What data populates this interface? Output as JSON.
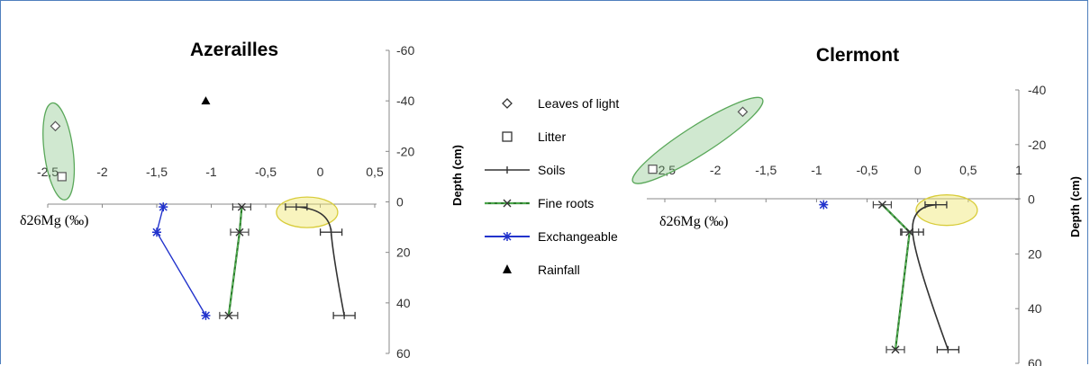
{
  "legend": [
    {
      "label": "Leaves of light",
      "marker": "diamond-open",
      "color": "#333333"
    },
    {
      "label": "Litter",
      "marker": "square-open",
      "color": "#333333"
    },
    {
      "label": "Soils",
      "marker": "line-bar",
      "color": "#333333"
    },
    {
      "label": "Fine roots",
      "marker": "x-dashed",
      "color": "#2a7a2a"
    },
    {
      "label": "Exchangeable",
      "marker": "star-line",
      "color": "#2233cc"
    },
    {
      "label": "Rainfall",
      "marker": "triangle",
      "color": "#000000"
    }
  ],
  "colors": {
    "soils": "#333333",
    "fine_roots": "#2a7a2a",
    "fine_roots_dash": "#5fbf5f",
    "exchangeable": "#2233cc",
    "green_ellipse": "#5aa85a",
    "yellow_ellipse": "#d8cc3a",
    "frame": "#4f7fbd"
  },
  "chart_data": [
    {
      "type": "scatter",
      "title": "Azerailles",
      "xlabel": "δ26Mg (‰)",
      "ylabel": "Depth (cm)",
      "xlim": [
        -2.5,
        0.5
      ],
      "ylim": [
        -60,
        60
      ],
      "y_inverted": true,
      "x_ticks": [
        "-2,5",
        "-2",
        "-1,5",
        "-1",
        "-0,5",
        "0",
        "0,5"
      ],
      "y_ticks": [
        "-60",
        "-40",
        "-20",
        "0",
        "20",
        "40",
        "60"
      ],
      "series": [
        {
          "name": "Leaves of light",
          "points": [
            [
              -2.43,
              -30
            ]
          ]
        },
        {
          "name": "Litter",
          "points": [
            [
              -2.37,
              -10
            ]
          ]
        },
        {
          "name": "Soils",
          "points": [
            [
              -0.22,
              2
            ],
            [
              0.1,
              12
            ],
            [
              0.22,
              45
            ]
          ]
        },
        {
          "name": "Fine roots",
          "points": [
            [
              -0.72,
              2
            ],
            [
              -0.74,
              12
            ],
            [
              -0.84,
              45
            ]
          ]
        },
        {
          "name": "Exchangeable",
          "points": [
            [
              -1.44,
              2
            ],
            [
              -1.5,
              12
            ],
            [
              -1.05,
              45
            ]
          ]
        },
        {
          "name": "Rainfall",
          "points": [
            [
              -1.05,
              -40
            ]
          ]
        }
      ],
      "annotations": [
        "green ellipse around leaves and litter",
        "yellow ellipse around shallow soil"
      ]
    },
    {
      "type": "scatter",
      "title": "Clermont",
      "xlabel": "δ26Mg (‰)",
      "ylabel": "Depth (cm)",
      "xlim": [
        -2.5,
        1
      ],
      "ylim": [
        -40,
        60
      ],
      "y_inverted": true,
      "x_ticks": [
        "-2,5",
        "-2",
        "-1,5",
        "-1",
        "-0,5",
        "0",
        "0,5",
        "1"
      ],
      "y_ticks": [
        "-40",
        "-20",
        "0",
        "20",
        "40",
        "60"
      ],
      "series": [
        {
          "name": "Leaves of light",
          "points": [
            [
              -1.73,
              -32
            ]
          ]
        },
        {
          "name": "Litter",
          "points": [
            [
              -2.62,
              -11
            ]
          ]
        },
        {
          "name": "Soils",
          "points": [
            [
              0.18,
              2
            ],
            [
              -0.05,
              12
            ],
            [
              0.3,
              55
            ]
          ]
        },
        {
          "name": "Fine roots",
          "points": [
            [
              -0.35,
              2
            ],
            [
              -0.08,
              12
            ],
            [
              -0.22,
              55
            ]
          ]
        },
        {
          "name": "Exchangeable",
          "points": [
            [
              -0.93,
              2
            ]
          ]
        }
      ],
      "annotations": [
        "green ellipse around leaves and litter",
        "yellow ellipse around shallow soil"
      ]
    }
  ]
}
